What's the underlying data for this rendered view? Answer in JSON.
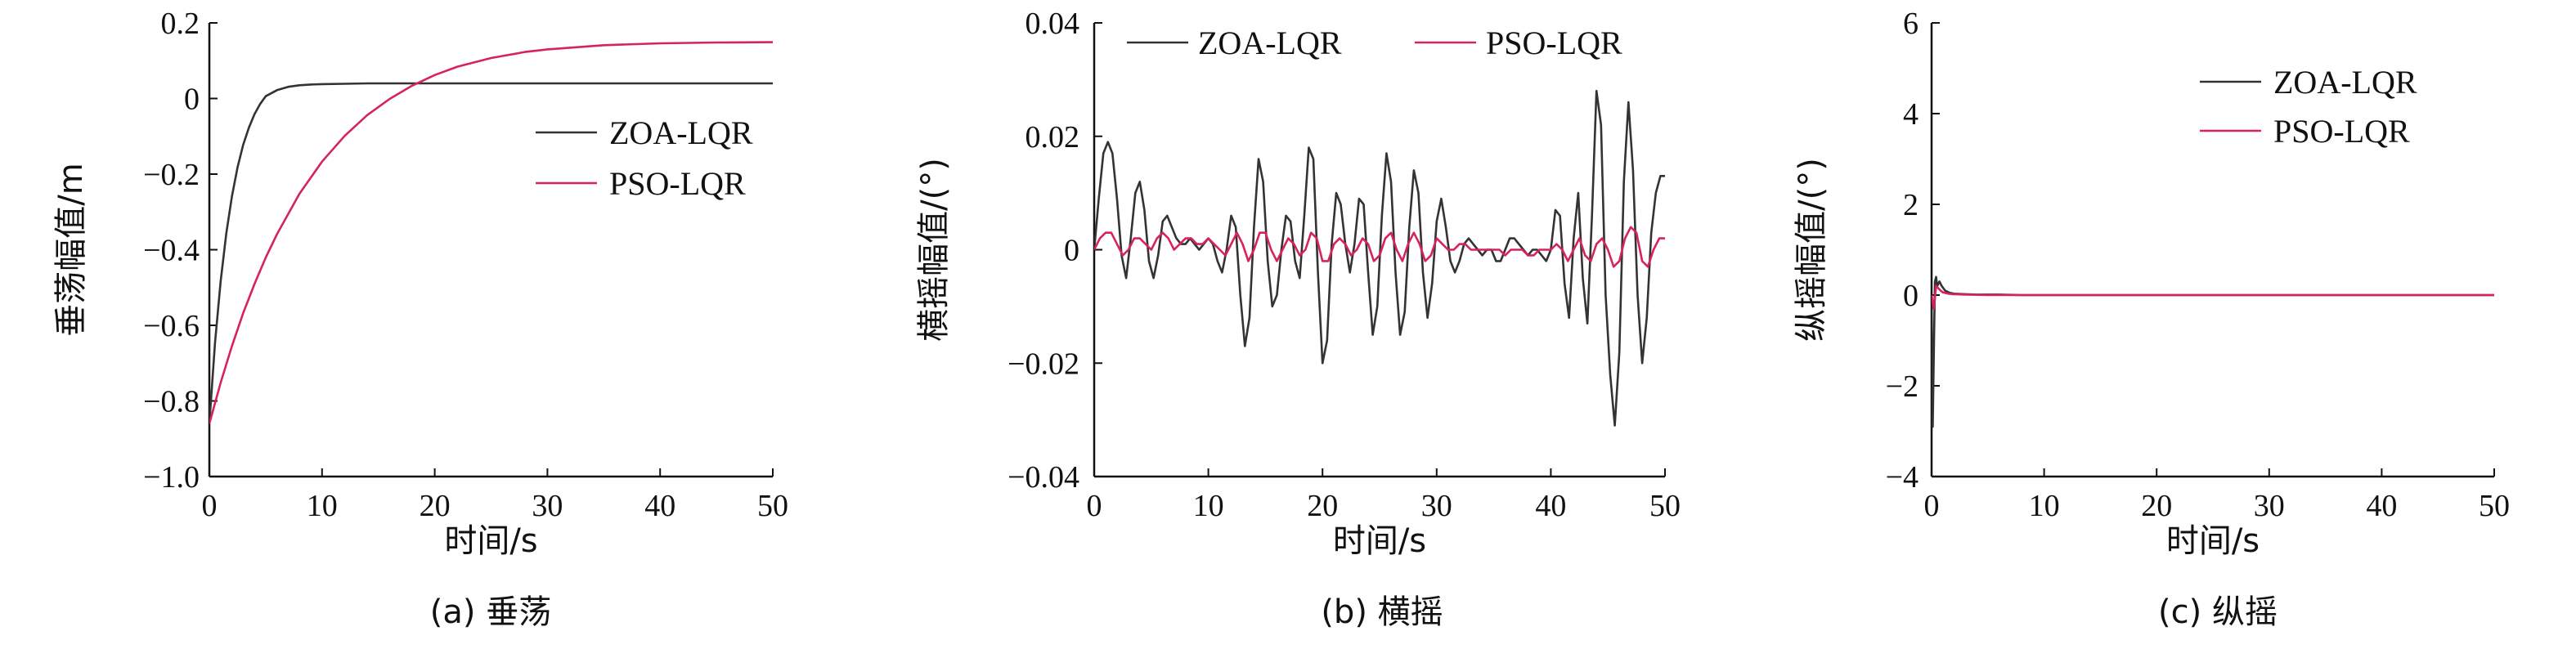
{
  "chart_data": [
    {
      "type": "line",
      "caption": "(a) 垂荡",
      "xlabel": "时间/s",
      "ylabel": "垂荡幅值/m",
      "xlim": [
        0,
        50
      ],
      "ylim": [
        -1.0,
        0.2
      ],
      "xticks": [
        0,
        10,
        20,
        30,
        40,
        50
      ],
      "xtick_labels": [
        "0",
        "10",
        "20",
        "30",
        "40",
        "50"
      ],
      "yticks": [
        -1.0,
        -0.8,
        -0.6,
        -0.4,
        -0.2,
        0,
        0.2
      ],
      "ytick_labels": [
        "−1.0",
        "−0.8",
        "−0.6",
        "−0.4",
        "−0.2",
        "0",
        "0.2"
      ],
      "legend_position": "right-middle",
      "grid": false,
      "series": [
        {
          "name": "ZOA-LQR",
          "color": "#333333",
          "x": [
            0,
            0.5,
            1,
            1.5,
            2,
            2.5,
            3,
            3.5,
            4,
            4.5,
            5,
            6,
            7,
            8,
            9,
            10,
            12,
            14,
            16,
            20,
            25,
            30,
            40,
            50
          ],
          "y": [
            -0.86,
            -0.647,
            -0.484,
            -0.357,
            -0.259,
            -0.183,
            -0.123,
            -0.078,
            -0.042,
            -0.015,
            0.006,
            0.022,
            0.031,
            0.035,
            0.037,
            0.038,
            0.039,
            0.04,
            0.04,
            0.04,
            0.04,
            0.04,
            0.04,
            0.04
          ]
        },
        {
          "name": "PSO-LQR",
          "color": "#d6245a",
          "x": [
            0,
            1,
            2,
            3,
            4,
            5,
            6,
            8,
            10,
            12,
            14,
            16,
            18,
            20,
            22,
            25,
            28,
            30,
            35,
            40,
            45,
            50
          ],
          "y": [
            -0.86,
            -0.752,
            -0.655,
            -0.568,
            -0.491,
            -0.421,
            -0.359,
            -0.252,
            -0.167,
            -0.099,
            -0.044,
            -0.001,
            0.034,
            0.062,
            0.084,
            0.107,
            0.123,
            0.13,
            0.141,
            0.146,
            0.148,
            0.149
          ]
        }
      ]
    },
    {
      "type": "line",
      "caption": "(b) 横摇",
      "xlabel": "时间/s",
      "ylabel": "横摇幅值/(°)",
      "xlim": [
        0,
        50
      ],
      "ylim": [
        -0.04,
        0.04
      ],
      "xticks": [
        0,
        10,
        20,
        30,
        40,
        50
      ],
      "xtick_labels": [
        "0",
        "10",
        "20",
        "30",
        "40",
        "50"
      ],
      "yticks": [
        -0.04,
        -0.02,
        0,
        0.02,
        0.04
      ],
      "ytick_labels": [
        "−0.04",
        "−0.02",
        "0",
        "0.02",
        "0.04"
      ],
      "legend_position": "top",
      "grid": false,
      "series": [
        {
          "name": "ZOA-LQR",
          "color": "#333333",
          "x": [
            0,
            0.4,
            0.8,
            1.2,
            1.6,
            2.0,
            2.4,
            2.8,
            3.2,
            3.6,
            4.0,
            4.4,
            4.8,
            5.2,
            5.6,
            6.0,
            6.4,
            6.8,
            7.2,
            7.6,
            8.0,
            8.4,
            8.8,
            9.2,
            9.6,
            10.0,
            10.4,
            10.8,
            11.2,
            11.6,
            12.0,
            12.4,
            12.8,
            13.2,
            13.6,
            14.0,
            14.4,
            14.8,
            15.2,
            15.6,
            16.0,
            16.4,
            16.8,
            17.2,
            17.6,
            18.0,
            18.4,
            18.8,
            19.2,
            19.6,
            20.0,
            20.4,
            20.8,
            21.2,
            21.6,
            22.0,
            22.4,
            22.8,
            23.2,
            23.6,
            24.0,
            24.4,
            24.8,
            25.2,
            25.6,
            26.0,
            26.4,
            26.8,
            27.2,
            27.6,
            28.0,
            28.4,
            28.8,
            29.2,
            29.6,
            30.0,
            30.4,
            30.8,
            31.2,
            31.6,
            32.0,
            32.4,
            32.8,
            33.2,
            33.6,
            34.0,
            34.4,
            34.8,
            35.2,
            35.6,
            36.0,
            36.4,
            36.8,
            37.2,
            37.6,
            38.0,
            38.4,
            38.8,
            39.2,
            39.6,
            40.0,
            40.4,
            40.8,
            41.2,
            41.6,
            42.0,
            42.4,
            42.8,
            43.2,
            43.6,
            44.0,
            44.4,
            44.8,
            45.2,
            45.6,
            46.0,
            46.4,
            46.8,
            47.2,
            47.6,
            48.0,
            48.4,
            48.8,
            49.2,
            49.6,
            50.0
          ],
          "y": [
            0.0,
            0.009,
            0.017,
            0.019,
            0.017,
            0.009,
            -0.001,
            -0.005,
            0.002,
            0.01,
            0.012,
            0.007,
            -0.002,
            -0.005,
            -0.001,
            0.005,
            0.006,
            0.004,
            0.002,
            0.001,
            0.001,
            0.002,
            0.001,
            0.0,
            0.001,
            0.002,
            0.001,
            -0.002,
            -0.004,
            0.0,
            0.006,
            0.004,
            -0.008,
            -0.017,
            -0.012,
            0.004,
            0.016,
            0.012,
            -0.002,
            -0.01,
            -0.008,
            0.0,
            0.006,
            0.005,
            -0.002,
            -0.005,
            0.006,
            0.018,
            0.016,
            -0.004,
            -0.02,
            -0.016,
            0.001,
            0.01,
            0.008,
            0.001,
            -0.004,
            0.001,
            0.009,
            0.008,
            -0.004,
            -0.015,
            -0.01,
            0.006,
            0.017,
            0.012,
            -0.004,
            -0.015,
            -0.011,
            0.004,
            0.014,
            0.01,
            -0.004,
            -0.012,
            -0.006,
            0.005,
            0.009,
            0.004,
            -0.002,
            -0.004,
            -0.002,
            0.001,
            0.002,
            0.001,
            0.0,
            -0.001,
            0.0,
            0.0,
            -0.002,
            -0.002,
            0.0,
            0.002,
            0.002,
            0.001,
            0.0,
            -0.001,
            0.0,
            0.0,
            -0.001,
            -0.002,
            0.0,
            0.007,
            0.006,
            -0.006,
            -0.012,
            0.002,
            0.01,
            -0.005,
            -0.013,
            0.006,
            0.028,
            0.022,
            -0.008,
            -0.022,
            -0.031,
            -0.018,
            0.012,
            0.026,
            0.014,
            -0.008,
            -0.02,
            -0.012,
            0.003,
            0.01,
            0.013,
            0.013
          ],
          "y_note": ""
        },
        {
          "name": "PSO-LQR",
          "color": "#d6245a",
          "x": [
            0,
            0.5,
            1.0,
            1.5,
            2.0,
            2.5,
            3.0,
            3.5,
            4.0,
            4.5,
            5.0,
            5.5,
            6.0,
            6.5,
            7.0,
            7.5,
            8.0,
            8.5,
            9.0,
            9.5,
            10.0,
            10.5,
            11.0,
            11.5,
            12.0,
            12.5,
            13.0,
            13.5,
            14.0,
            14.5,
            15.0,
            15.5,
            16.0,
            16.5,
            17.0,
            17.5,
            18.0,
            18.5,
            19.0,
            19.5,
            20.0,
            20.5,
            21.0,
            21.5,
            22.0,
            22.5,
            23.0,
            23.5,
            24.0,
            24.5,
            25.0,
            25.5,
            26.0,
            26.5,
            27.0,
            27.5,
            28.0,
            28.5,
            29.0,
            29.5,
            30.0,
            30.5,
            31.0,
            31.5,
            32.0,
            32.5,
            33.0,
            33.5,
            34.0,
            34.5,
            35.0,
            35.5,
            36.0,
            36.5,
            37.0,
            37.5,
            38.0,
            38.5,
            39.0,
            39.5,
            40.0,
            40.5,
            41.0,
            41.5,
            42.0,
            42.5,
            43.0,
            43.5,
            44.0,
            44.5,
            45.0,
            45.5,
            46.0,
            46.5,
            47.0,
            47.5,
            48.0,
            48.5,
            49.0,
            49.5,
            50.0
          ],
          "y": [
            0.0,
            0.002,
            0.003,
            0.003,
            0.001,
            -0.001,
            0.0,
            0.002,
            0.002,
            0.001,
            0.0,
            0.002,
            0.003,
            0.002,
            0.0,
            0.001,
            0.002,
            0.002,
            0.001,
            0.001,
            0.002,
            0.001,
            0.0,
            -0.001,
            0.001,
            0.003,
            0.001,
            -0.002,
            0.0,
            0.003,
            0.003,
            0.0,
            -0.002,
            0.0,
            0.002,
            0.001,
            -0.001,
            0.0,
            0.003,
            0.002,
            -0.002,
            -0.002,
            0.001,
            0.002,
            0.001,
            -0.001,
            0.0,
            0.002,
            0.001,
            -0.002,
            -0.001,
            0.002,
            0.003,
            0.0,
            -0.002,
            0.001,
            0.003,
            0.001,
            -0.002,
            -0.001,
            0.002,
            0.001,
            0.0,
            0.0,
            0.001,
            0.001,
            0.0,
            0.0,
            0.0,
            0.0,
            0.0,
            0.0,
            -0.001,
            0.0,
            0.0,
            0.0,
            -0.001,
            -0.001,
            0.0,
            0.0,
            0.0,
            0.001,
            0.0,
            -0.002,
            0.0,
            0.002,
            -0.001,
            -0.002,
            0.001,
            0.002,
            0.0,
            -0.003,
            -0.002,
            0.002,
            0.004,
            0.003,
            -0.002,
            -0.003,
            0.0,
            0.002,
            0.002
          ]
        }
      ]
    },
    {
      "type": "line",
      "caption": "(c) 纵摇",
      "xlabel": "时间/s",
      "ylabel": "纵摇幅值/(°)",
      "xlim": [
        0,
        50
      ],
      "ylim": [
        -4,
        6
      ],
      "xticks": [
        0,
        10,
        20,
        30,
        40,
        50
      ],
      "xtick_labels": [
        "0",
        "10",
        "20",
        "30",
        "40",
        "50"
      ],
      "yticks": [
        -4,
        -2,
        0,
        2,
        4,
        6
      ],
      "ytick_labels": [
        "−4",
        "−2",
        "0",
        "2",
        "4",
        "6"
      ],
      "legend_position": "top-right",
      "grid": false,
      "series": [
        {
          "name": "ZOA-LQR",
          "color": "#333333",
          "x": [
            0,
            0.1,
            0.2,
            0.3,
            0.4,
            0.5,
            0.7,
            0.9,
            1.2,
            1.6,
            2.0,
            3.0,
            4.0,
            6.0,
            8.0,
            10.0,
            20.0,
            30.0,
            40.0,
            50.0
          ],
          "y": [
            0.0,
            -2.9,
            -1.2,
            0.3,
            0.4,
            0.2,
            0.3,
            0.2,
            0.1,
            0.05,
            0.03,
            0.02,
            0.01,
            0.01,
            0.0,
            0.0,
            0.0,
            0.0,
            0.0,
            0.0
          ]
        },
        {
          "name": "PSO-LQR",
          "color": "#d6245a",
          "x": [
            0,
            0.2,
            0.4,
            0.6,
            0.8,
            1.0,
            1.5,
            2.0,
            3.0,
            5.0,
            8.0,
            10.0,
            20.0,
            30.0,
            40.0,
            50.0
          ],
          "y": [
            0.0,
            -0.3,
            0.2,
            0.15,
            0.1,
            0.06,
            0.03,
            0.02,
            0.01,
            0.0,
            0.0,
            0.0,
            0.0,
            0.0,
            0.0,
            0.0
          ]
        }
      ]
    }
  ]
}
